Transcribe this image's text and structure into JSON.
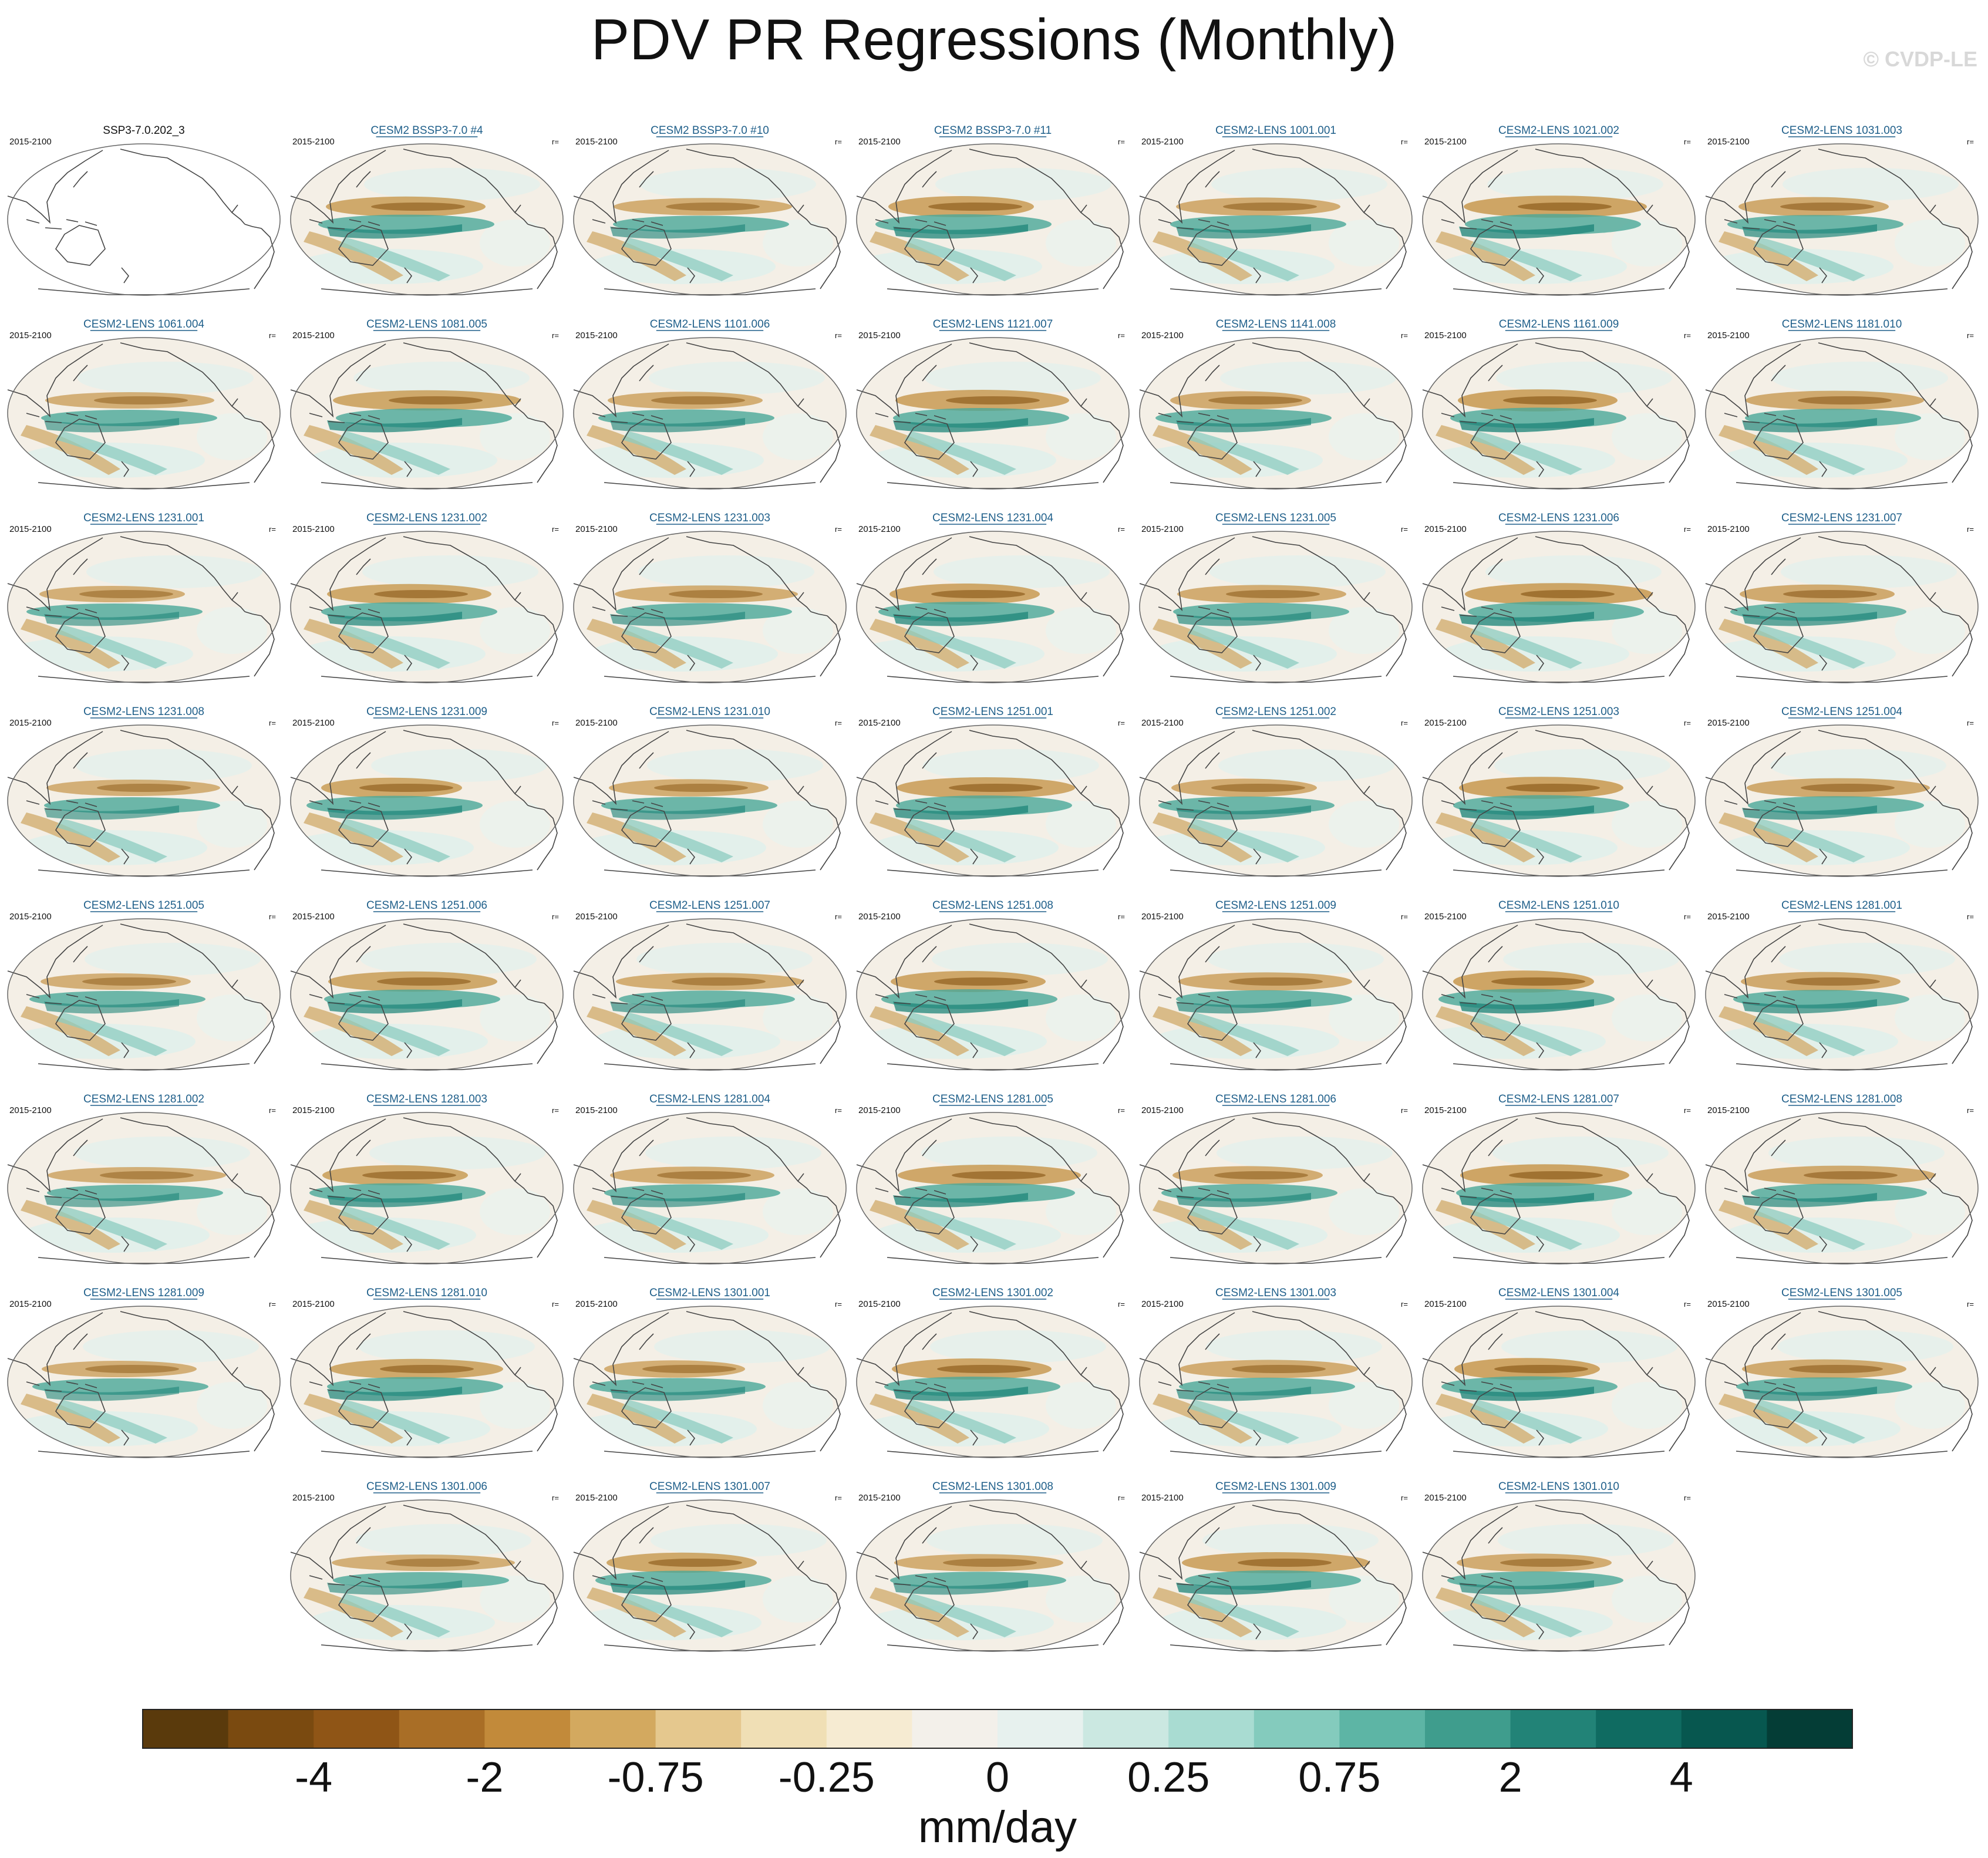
{
  "title": "PDV PR Regressions (Monthly)",
  "watermark": "© CVDP-LE",
  "period": "2015-2100",
  "r_label": "r=",
  "colors": {
    "panel_title": "#1f5f8a",
    "coast": "#444444",
    "ocean_neutral": "#f4efe6"
  },
  "chart_data": {
    "type": "heatmap",
    "title": "PDV PR Regressions (Monthly)",
    "units": "mm/day",
    "panels": [
      {
        "title": "SSP3-7.0.202_3",
        "period": "2015-2100",
        "kind": "observations",
        "r": ""
      },
      {
        "title": "CESM2 BSSP3-7.0 #4",
        "period": "2015-2100",
        "r": "r="
      },
      {
        "title": "CESM2 BSSP3-7.0 #10",
        "period": "2015-2100",
        "r": "r="
      },
      {
        "title": "CESM2 BSSP3-7.0 #11",
        "period": "2015-2100",
        "r": "r="
      },
      {
        "title": "CESM2-LENS 1001.001",
        "period": "2015-2100",
        "r": "r="
      },
      {
        "title": "CESM2-LENS 1021.002",
        "period": "2015-2100",
        "r": "r="
      },
      {
        "title": "CESM2-LENS 1031.003",
        "period": "2015-2100",
        "r": "r="
      },
      {
        "title": "CESM2-LENS 1061.004",
        "period": "2015-2100",
        "r": "r="
      },
      {
        "title": "CESM2-LENS 1081.005",
        "period": "2015-2100",
        "r": "r="
      },
      {
        "title": "CESM2-LENS 1101.006",
        "period": "2015-2100",
        "r": "r="
      },
      {
        "title": "CESM2-LENS 1121.007",
        "period": "2015-2100",
        "r": "r="
      },
      {
        "title": "CESM2-LENS 1141.008",
        "period": "2015-2100",
        "r": "r="
      },
      {
        "title": "CESM2-LENS 1161.009",
        "period": "2015-2100",
        "r": "r="
      },
      {
        "title": "CESM2-LENS 1181.010",
        "period": "2015-2100",
        "r": "r="
      },
      {
        "title": "CESM2-LENS 1231.001",
        "period": "2015-2100",
        "r": "r="
      },
      {
        "title": "CESM2-LENS 1231.002",
        "period": "2015-2100",
        "r": "r="
      },
      {
        "title": "CESM2-LENS 1231.003",
        "period": "2015-2100",
        "r": "r="
      },
      {
        "title": "CESM2-LENS 1231.004",
        "period": "2015-2100",
        "r": "r="
      },
      {
        "title": "CESM2-LENS 1231.005",
        "period": "2015-2100",
        "r": "r="
      },
      {
        "title": "CESM2-LENS 1231.006",
        "period": "2015-2100",
        "r": "r="
      },
      {
        "title": "CESM2-LENS 1231.007",
        "period": "2015-2100",
        "r": "r="
      },
      {
        "title": "CESM2-LENS 1231.008",
        "period": "2015-2100",
        "r": "r="
      },
      {
        "title": "CESM2-LENS 1231.009",
        "period": "2015-2100",
        "r": "r="
      },
      {
        "title": "CESM2-LENS 1231.010",
        "period": "2015-2100",
        "r": "r="
      },
      {
        "title": "CESM2-LENS 1251.001",
        "period": "2015-2100",
        "r": "r="
      },
      {
        "title": "CESM2-LENS 1251.002",
        "period": "2015-2100",
        "r": "r="
      },
      {
        "title": "CESM2-LENS 1251.003",
        "period": "2015-2100",
        "r": "r="
      },
      {
        "title": "CESM2-LENS 1251.004",
        "period": "2015-2100",
        "r": "r="
      },
      {
        "title": "CESM2-LENS 1251.005",
        "period": "2015-2100",
        "r": "r="
      },
      {
        "title": "CESM2-LENS 1251.006",
        "period": "2015-2100",
        "r": "r="
      },
      {
        "title": "CESM2-LENS 1251.007",
        "period": "2015-2100",
        "r": "r="
      },
      {
        "title": "CESM2-LENS 1251.008",
        "period": "2015-2100",
        "r": "r="
      },
      {
        "title": "CESM2-LENS 1251.009",
        "period": "2015-2100",
        "r": "r="
      },
      {
        "title": "CESM2-LENS 1251.010",
        "period": "2015-2100",
        "r": "r="
      },
      {
        "title": "CESM2-LENS 1281.001",
        "period": "2015-2100",
        "r": "r="
      },
      {
        "title": "CESM2-LENS 1281.002",
        "period": "2015-2100",
        "r": "r="
      },
      {
        "title": "CESM2-LENS 1281.003",
        "period": "2015-2100",
        "r": "r="
      },
      {
        "title": "CESM2-LENS 1281.004",
        "period": "2015-2100",
        "r": "r="
      },
      {
        "title": "CESM2-LENS 1281.005",
        "period": "2015-2100",
        "r": "r="
      },
      {
        "title": "CESM2-LENS 1281.006",
        "period": "2015-2100",
        "r": "r="
      },
      {
        "title": "CESM2-LENS 1281.007",
        "period": "2015-2100",
        "r": "r="
      },
      {
        "title": "CESM2-LENS 1281.008",
        "period": "2015-2100",
        "r": "r="
      },
      {
        "title": "CESM2-LENS 1281.009",
        "period": "2015-2100",
        "r": "r="
      },
      {
        "title": "CESM2-LENS 1281.010",
        "period": "2015-2100",
        "r": "r="
      },
      {
        "title": "CESM2-LENS 1301.001",
        "period": "2015-2100",
        "r": "r="
      },
      {
        "title": "CESM2-LENS 1301.002",
        "period": "2015-2100",
        "r": "r="
      },
      {
        "title": "CESM2-LENS 1301.003",
        "period": "2015-2100",
        "r": "r="
      },
      {
        "title": "CESM2-LENS 1301.004",
        "period": "2015-2100",
        "r": "r="
      },
      {
        "title": "CESM2-LENS 1301.005",
        "period": "2015-2100",
        "r": "r="
      },
      {
        "title": "CESM2-LENS 1301.006",
        "period": "2015-2100",
        "r": "r="
      },
      {
        "title": "CESM2-LENS 1301.007",
        "period": "2015-2100",
        "r": "r="
      },
      {
        "title": "CESM2-LENS 1301.008",
        "period": "2015-2100",
        "r": "r="
      },
      {
        "title": "CESM2-LENS 1301.009",
        "period": "2015-2100",
        "r": "r="
      },
      {
        "title": "CESM2-LENS 1301.010",
        "period": "2015-2100",
        "r": "r="
      }
    ],
    "colorbar": {
      "units": "mm/day",
      "colors": [
        "#5a3a0c",
        "#7a4a10",
        "#8f5516",
        "#a96e26",
        "#c28a3a",
        "#d3a95f",
        "#e5c88e",
        "#f0dfb5",
        "#f6ebd2",
        "#f3f0ea",
        "#e7f1ee",
        "#cbe8e1",
        "#a9dcd2",
        "#84cbbd",
        "#5db5a5",
        "#3f9d8d",
        "#228377",
        "#0f6b61",
        "#07574f",
        "#043d36"
      ],
      "tick_labels": [
        "-4",
        "-2",
        "-0.75",
        "-0.25",
        "0",
        "0.25",
        "0.75",
        "2",
        "4"
      ]
    }
  }
}
